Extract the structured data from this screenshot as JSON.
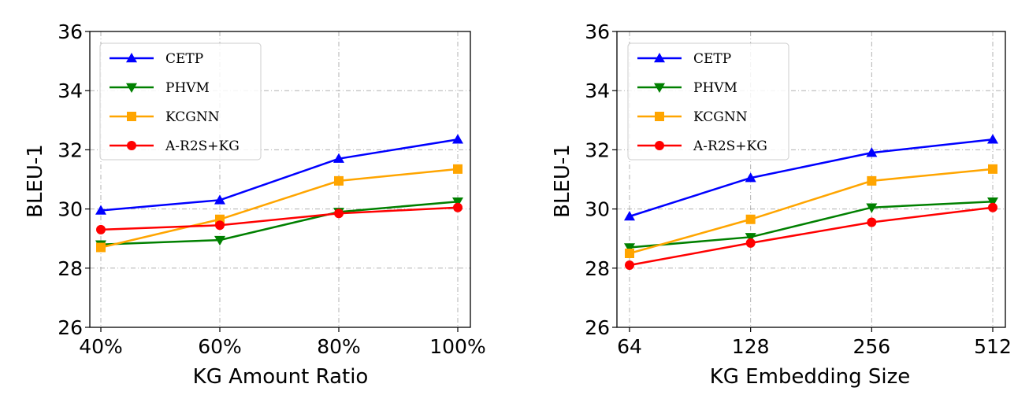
{
  "chart_data": [
    {
      "type": "line",
      "xlabel": "KG Amount Ratio",
      "ylabel": "BLEU-1",
      "categories": [
        "40%",
        "60%",
        "80%",
        "100%"
      ],
      "ylim": [
        26,
        36
      ],
      "yticks": [
        26,
        28,
        30,
        32,
        34,
        36
      ],
      "grid": true,
      "legend_position": "top-left",
      "series": [
        {
          "name": "CETP",
          "color": "#0000ff",
          "marker": "triangle-up",
          "values": [
            29.95,
            30.3,
            31.7,
            32.35
          ]
        },
        {
          "name": "PHVM",
          "color": "#008000",
          "marker": "triangle-down",
          "values": [
            28.8,
            28.95,
            29.9,
            30.25
          ]
        },
        {
          "name": "KCGNN",
          "color": "#ffa500",
          "marker": "square",
          "values": [
            28.7,
            29.65,
            30.95,
            31.35
          ]
        },
        {
          "name": "A-R2S+KG",
          "color": "#ff0000",
          "marker": "circle",
          "values": [
            29.3,
            29.45,
            29.85,
            30.05
          ]
        }
      ]
    },
    {
      "type": "line",
      "xlabel": "KG Embedding Size",
      "ylabel": "BLEU-1",
      "categories": [
        "64",
        "128",
        "256",
        "512"
      ],
      "ylim": [
        26,
        36
      ],
      "yticks": [
        26,
        28,
        30,
        32,
        34,
        36
      ],
      "grid": true,
      "legend_position": "top-left",
      "series": [
        {
          "name": "CETP",
          "color": "#0000ff",
          "marker": "triangle-up",
          "values": [
            29.75,
            31.05,
            31.9,
            32.35
          ]
        },
        {
          "name": "PHVM",
          "color": "#008000",
          "marker": "triangle-down",
          "values": [
            28.7,
            29.05,
            30.05,
            30.25
          ]
        },
        {
          "name": "KCGNN",
          "color": "#ffa500",
          "marker": "square",
          "values": [
            28.5,
            29.65,
            30.95,
            31.35
          ]
        },
        {
          "name": "A-R2S+KG",
          "color": "#ff0000",
          "marker": "circle",
          "values": [
            28.1,
            28.85,
            29.55,
            30.05
          ]
        }
      ]
    }
  ]
}
